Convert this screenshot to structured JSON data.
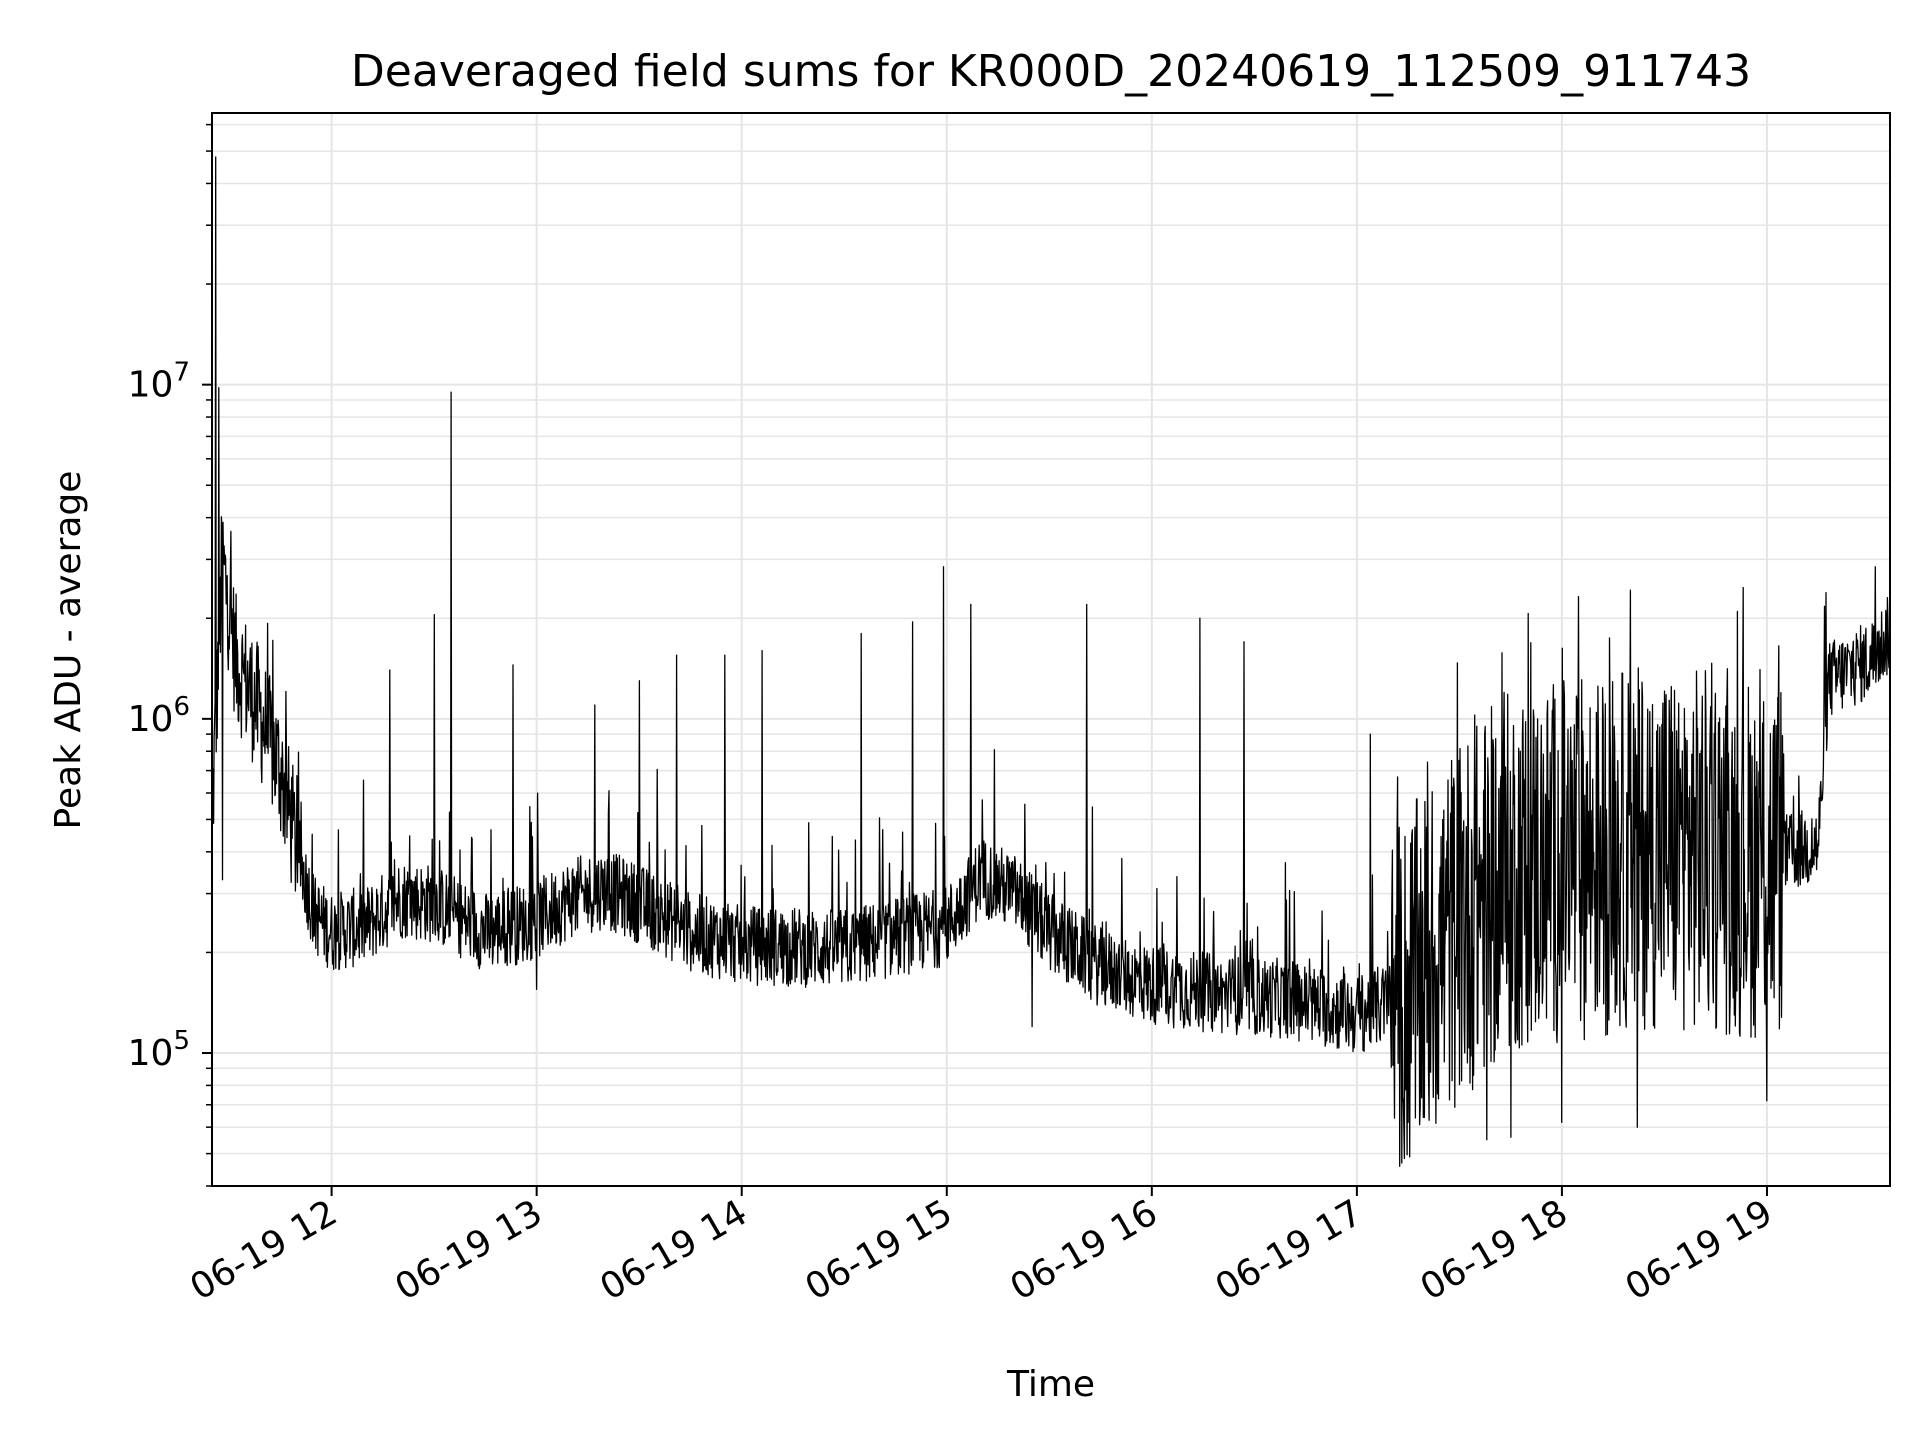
{
  "chart_data": {
    "type": "line",
    "title": "Deaveraged field sums for KR000D_20240619_112509_911743",
    "xlabel": "Time",
    "ylabel": "Peak ADU - average",
    "x_is_time": true,
    "x_range": [
      "2024-06-19 11:25",
      "2024-06-19 19:36"
    ],
    "x_ticks": [
      {
        "value": "2024-06-19 12:00",
        "label": "06-19 12"
      },
      {
        "value": "2024-06-19 13:00",
        "label": "06-19 13"
      },
      {
        "value": "2024-06-19 14:00",
        "label": "06-19 14"
      },
      {
        "value": "2024-06-19 15:00",
        "label": "06-19 15"
      },
      {
        "value": "2024-06-19 16:00",
        "label": "06-19 16"
      },
      {
        "value": "2024-06-19 17:00",
        "label": "06-19 17"
      },
      {
        "value": "2024-06-19 18:00",
        "label": "06-19 18"
      },
      {
        "value": "2024-06-19 19:00",
        "label": "06-19 19"
      }
    ],
    "y_scale": "log",
    "y_range": [
      40000,
      65000000
    ],
    "y_ticks": [
      {
        "value": 100000,
        "base": "10",
        "exp": "5"
      },
      {
        "value": 1000000,
        "base": "10",
        "exp": "6"
      },
      {
        "value": 10000000,
        "base": "10",
        "exp": "7"
      }
    ],
    "grid": true,
    "line_color": "#000000",
    "grid_color": "#e5e5e5",
    "series": [
      {
        "baseline": [
          [
            "2024-06-19 11:25",
            500000
          ],
          [
            "2024-06-19 11:28",
            3000000
          ],
          [
            "2024-06-19 11:32",
            1500000
          ],
          [
            "2024-06-19 11:38",
            1100000
          ],
          [
            "2024-06-19 11:45",
            700000
          ],
          [
            "2024-06-19 11:50",
            400000
          ],
          [
            "2024-06-19 11:55",
            260000
          ],
          [
            "2024-06-19 12:00",
            230000
          ],
          [
            "2024-06-19 12:10",
            240000
          ],
          [
            "2024-06-19 12:20",
            290000
          ],
          [
            "2024-06-19 12:30",
            280000
          ],
          [
            "2024-06-19 12:45",
            230000
          ],
          [
            "2024-06-19 13:00",
            250000
          ],
          [
            "2024-06-19 13:10",
            290000
          ],
          [
            "2024-06-19 13:20",
            310000
          ],
          [
            "2024-06-19 13:30",
            280000
          ],
          [
            "2024-06-19 13:45",
            230000
          ],
          [
            "2024-06-19 14:00",
            210000
          ],
          [
            "2024-06-19 14:30",
            205000
          ],
          [
            "2024-06-19 15:00",
            240000
          ],
          [
            "2024-06-19 15:10",
            340000
          ],
          [
            "2024-06-19 15:20",
            300000
          ],
          [
            "2024-06-19 15:30",
            230000
          ],
          [
            "2024-06-19 15:45",
            180000
          ],
          [
            "2024-06-19 16:00",
            160000
          ],
          [
            "2024-06-19 16:20",
            150000
          ],
          [
            "2024-06-19 16:40",
            145000
          ],
          [
            "2024-06-19 17:00",
            130000
          ],
          [
            "2024-06-19 17:15",
            150000
          ],
          [
            "2024-06-19 17:30",
            250000
          ],
          [
            "2024-06-19 17:45",
            350000
          ],
          [
            "2024-06-19 18:00",
            380000
          ],
          [
            "2024-06-19 18:30",
            420000
          ],
          [
            "2024-06-19 19:00",
            380000
          ],
          [
            "2024-06-19 19:15",
            420000
          ],
          [
            "2024-06-19 19:18",
            1300000
          ],
          [
            "2024-06-19 19:30",
            1500000
          ],
          [
            "2024-06-19 19:36",
            1800000
          ]
        ],
        "spikes": [
          [
            "2024-06-19 11:26",
            48000000
          ],
          [
            "2024-06-19 11:27",
            9800000
          ],
          [
            "2024-06-19 12:35",
            9500000
          ],
          [
            "2024-06-19 12:17",
            1400000
          ],
          [
            "2024-06-19 12:30",
            2050000
          ],
          [
            "2024-06-19 12:53",
            1450000
          ],
          [
            "2024-06-19 13:17",
            1100000
          ],
          [
            "2024-06-19 13:30",
            1300000
          ],
          [
            "2024-06-19 13:41",
            1550000
          ],
          [
            "2024-06-19 13:55",
            1550000
          ],
          [
            "2024-06-19 14:06",
            1600000
          ],
          [
            "2024-06-19 14:35",
            1800000
          ],
          [
            "2024-06-19 14:50",
            1950000
          ],
          [
            "2024-06-19 14:59",
            2850000
          ],
          [
            "2024-06-19 15:07",
            2200000
          ],
          [
            "2024-06-19 15:41",
            2200000
          ],
          [
            "2024-06-19 16:14",
            2000000
          ],
          [
            "2024-06-19 16:27",
            1700000
          ],
          [
            "2024-06-19 17:04",
            900000
          ],
          [
            "2024-06-19 17:43",
            1200000
          ],
          [
            "2024-06-19 19:36",
            3000000
          ]
        ],
        "dips": [
          [
            "2024-06-19 11:28",
            330000
          ],
          [
            "2024-06-19 13:00",
            155000
          ],
          [
            "2024-06-19 15:25",
            120000
          ],
          [
            "2024-06-19 17:15",
            62000
          ],
          [
            "2024-06-19 17:38",
            55000
          ],
          [
            "2024-06-19 17:45",
            56000
          ],
          [
            "2024-06-19 18:00",
            62000
          ],
          [
            "2024-06-19 18:22",
            60000
          ],
          [
            "2024-06-19 19:00",
            72000
          ]
        ]
      }
    ]
  }
}
